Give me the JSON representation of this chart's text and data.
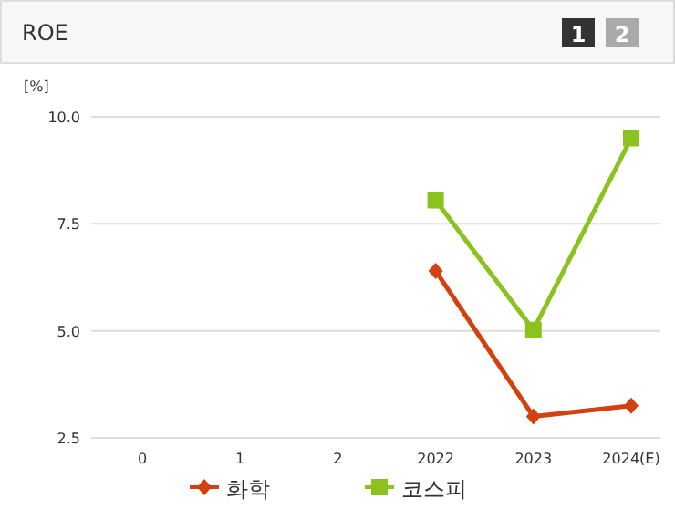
{
  "chart_data": {
    "type": "line",
    "title": "ROE",
    "ylabel": "[%]",
    "categories": [
      "0",
      "1",
      "2",
      "2022",
      "2023",
      "2024(E)"
    ],
    "series": [
      {
        "name": "화학",
        "color": "#d2410f",
        "marker": "diamond",
        "values": [
          null,
          null,
          null,
          6.4,
          3.0,
          3.25
        ]
      },
      {
        "name": "코스피",
        "color": "#8cc21e",
        "marker": "square",
        "values": [
          null,
          null,
          null,
          8.05,
          5.02,
          9.5
        ]
      }
    ],
    "ylim": [
      2.5,
      10.0
    ],
    "yticks": [
      2.5,
      {
        "value": 5,
        "label": "5.0"
      },
      7.5,
      {
        "value": 10,
        "label": "10.0"
      }
    ],
    "grid": "y",
    "legend": "bottom",
    "annotations": [
      "1",
      "2"
    ]
  }
}
